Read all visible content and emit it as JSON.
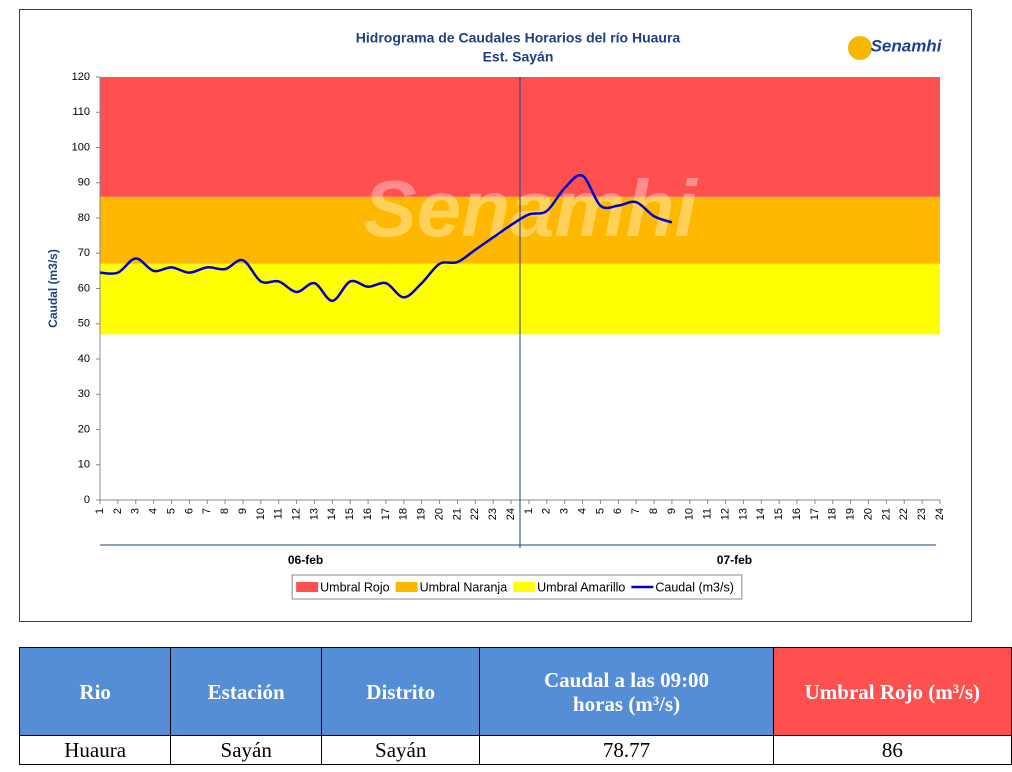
{
  "chart_data": {
    "type": "line",
    "title": "Hidrograma de Caudales Horarios del río Huaura",
    "subtitle": "Est. Sayán",
    "logo": "Senamhi",
    "watermark": "Senamhi",
    "y_label": "Caudal  (m3/s)",
    "categories": [
      "1",
      "2",
      "3",
      "4",
      "5",
      "6",
      "7",
      "8",
      "9",
      "10",
      "11",
      "12",
      "13",
      "14",
      "15",
      "16",
      "17",
      "18",
      "19",
      "20",
      "21",
      "22",
      "23",
      "24",
      "1",
      "2",
      "3",
      "4",
      "5",
      "6",
      "7",
      "8",
      "9",
      "10",
      "11",
      "12",
      "13",
      "14",
      "15",
      "16",
      "17",
      "18",
      "19",
      "20",
      "21",
      "22",
      "23",
      "24"
    ],
    "groups": [
      "06-feb",
      "07-feb"
    ],
    "ylim": [
      0,
      120
    ],
    "yticks": [
      0,
      10,
      20,
      30,
      40,
      50,
      60,
      70,
      80,
      90,
      100,
      110,
      120
    ],
    "thresholds": [
      {
        "name": "Umbral Rojo",
        "color": "#ff5050",
        "value": 86
      },
      {
        "name": "Umbral Naranja",
        "color": "#ffb800",
        "value": 67
      },
      {
        "name": "Umbral Amarillo",
        "color": "#ffff00",
        "value": 47
      }
    ],
    "series": [
      {
        "name": "Caudal (m3/s)",
        "color": "#0000cc",
        "values": [
          64.5,
          64.5,
          68.5,
          65,
          66,
          64.5,
          66,
          65.5,
          68,
          62,
          62,
          59,
          61.5,
          56.5,
          62,
          60.5,
          61.5,
          57.5,
          61.5,
          67,
          67.5,
          71,
          74.5,
          78,
          81,
          82,
          88.5,
          92,
          83.5,
          83.5,
          84.5,
          80.5,
          78.77,
          null,
          null,
          null,
          null,
          null,
          null,
          null,
          null,
          null,
          null,
          null,
          null,
          null,
          null,
          null
        ]
      }
    ]
  },
  "table": {
    "header": [
      "Rio",
      "Estación",
      "Distrito",
      "Caudal a las 09:00 horas (m³/s)",
      "Umbral Rojo (m³/s)"
    ],
    "rows": [
      [
        "Huaura",
        "Sayán",
        "Sayán",
        "78.77",
        "86"
      ]
    ]
  }
}
